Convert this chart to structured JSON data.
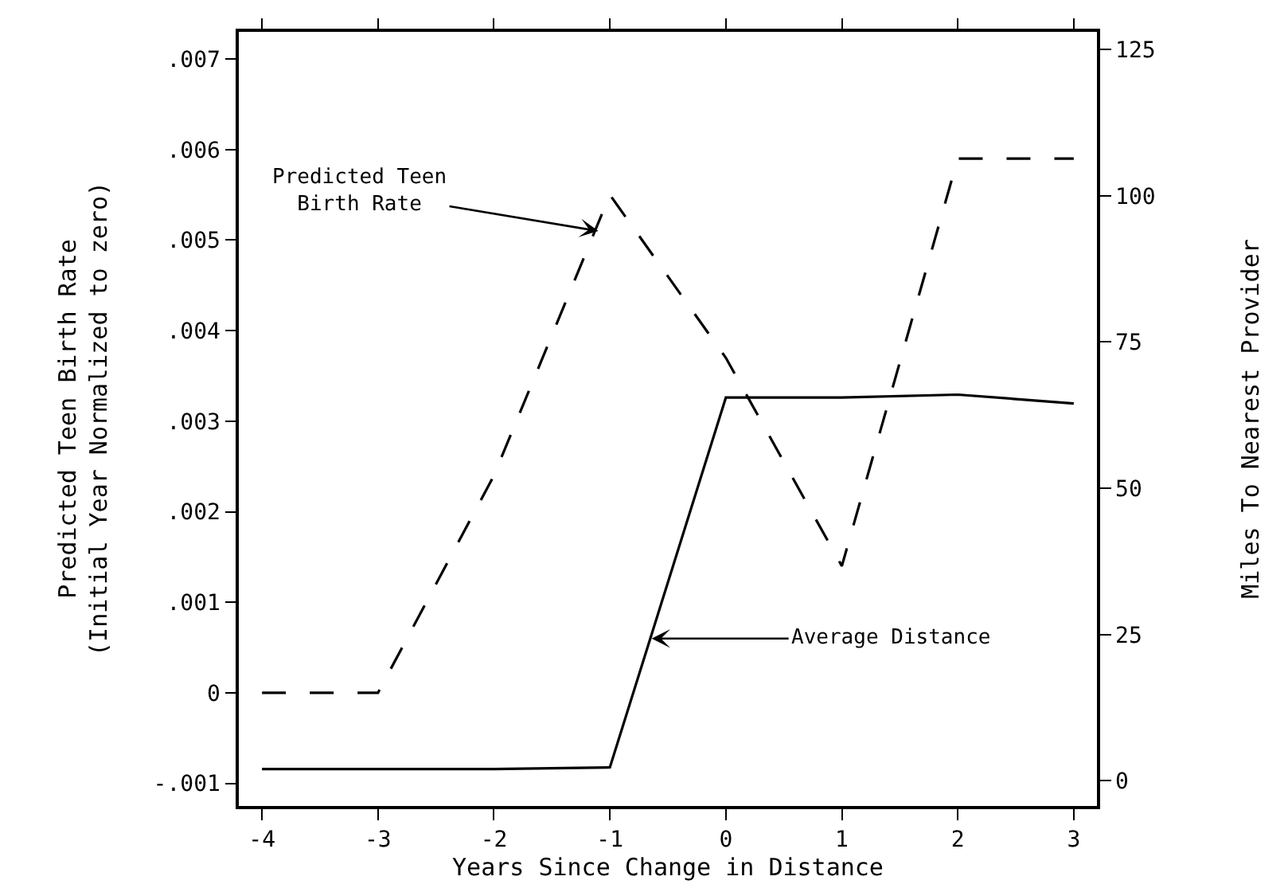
{
  "chart_data": {
    "type": "line",
    "xlabel": "Years Since Change in Distance",
    "ylabel": "Predicted Teen Birth Rate\n(Initial Year Normalized to zero)",
    "y2label": "Miles To Nearest Provider",
    "x": [
      -4,
      -3,
      -2,
      -1,
      0,
      1,
      2,
      3
    ],
    "series": [
      {
        "color": "#000000",
        "line_style": "dashed",
        "values": [
          0,
          0,
          0.0024,
          0.0055,
          0.0037,
          0.0014,
          0.0059,
          0.0059
        ]
      },
      {
        "color": "#000000",
        "line_style": "solid",
        "axis": "y2",
        "values": [
          2,
          2,
          2,
          2.3,
          65.5,
          65.5,
          66,
          64.5
        ]
      }
    ],
    "xlim": [
      -4.2,
      3.2
    ],
    "xticks": [
      -4,
      -3,
      -2,
      -1,
      0,
      1,
      2,
      3
    ],
    "ylim": [
      -0.00125,
      0.0073
    ],
    "yticks": [
      {
        "value": -0.001,
        "label": "-.001"
      },
      0,
      {
        "value": 0.001,
        "label": ".001"
      },
      {
        "value": 0.002,
        "label": ".002"
      },
      {
        "value": 0.003,
        "label": ".003"
      },
      {
        "value": 0.004,
        "label": ".004"
      },
      {
        "value": 0.005,
        "label": ".005"
      },
      {
        "value": 0.006,
        "label": ".006"
      },
      {
        "value": 0.007,
        "label": ".007"
      }
    ],
    "y2lim": [
      -4.3,
      128
    ],
    "y2ticks": [
      0,
      25,
      50,
      75,
      100,
      125
    ],
    "annotations": [
      {
        "text": "Predicted Teen\nBirth Rate",
        "x": -1.1,
        "y": 0.0051
      },
      {
        "text": "Average Distance",
        "x": -0.64,
        "y": 0.0006
      }
    ],
    "marker": "none"
  }
}
